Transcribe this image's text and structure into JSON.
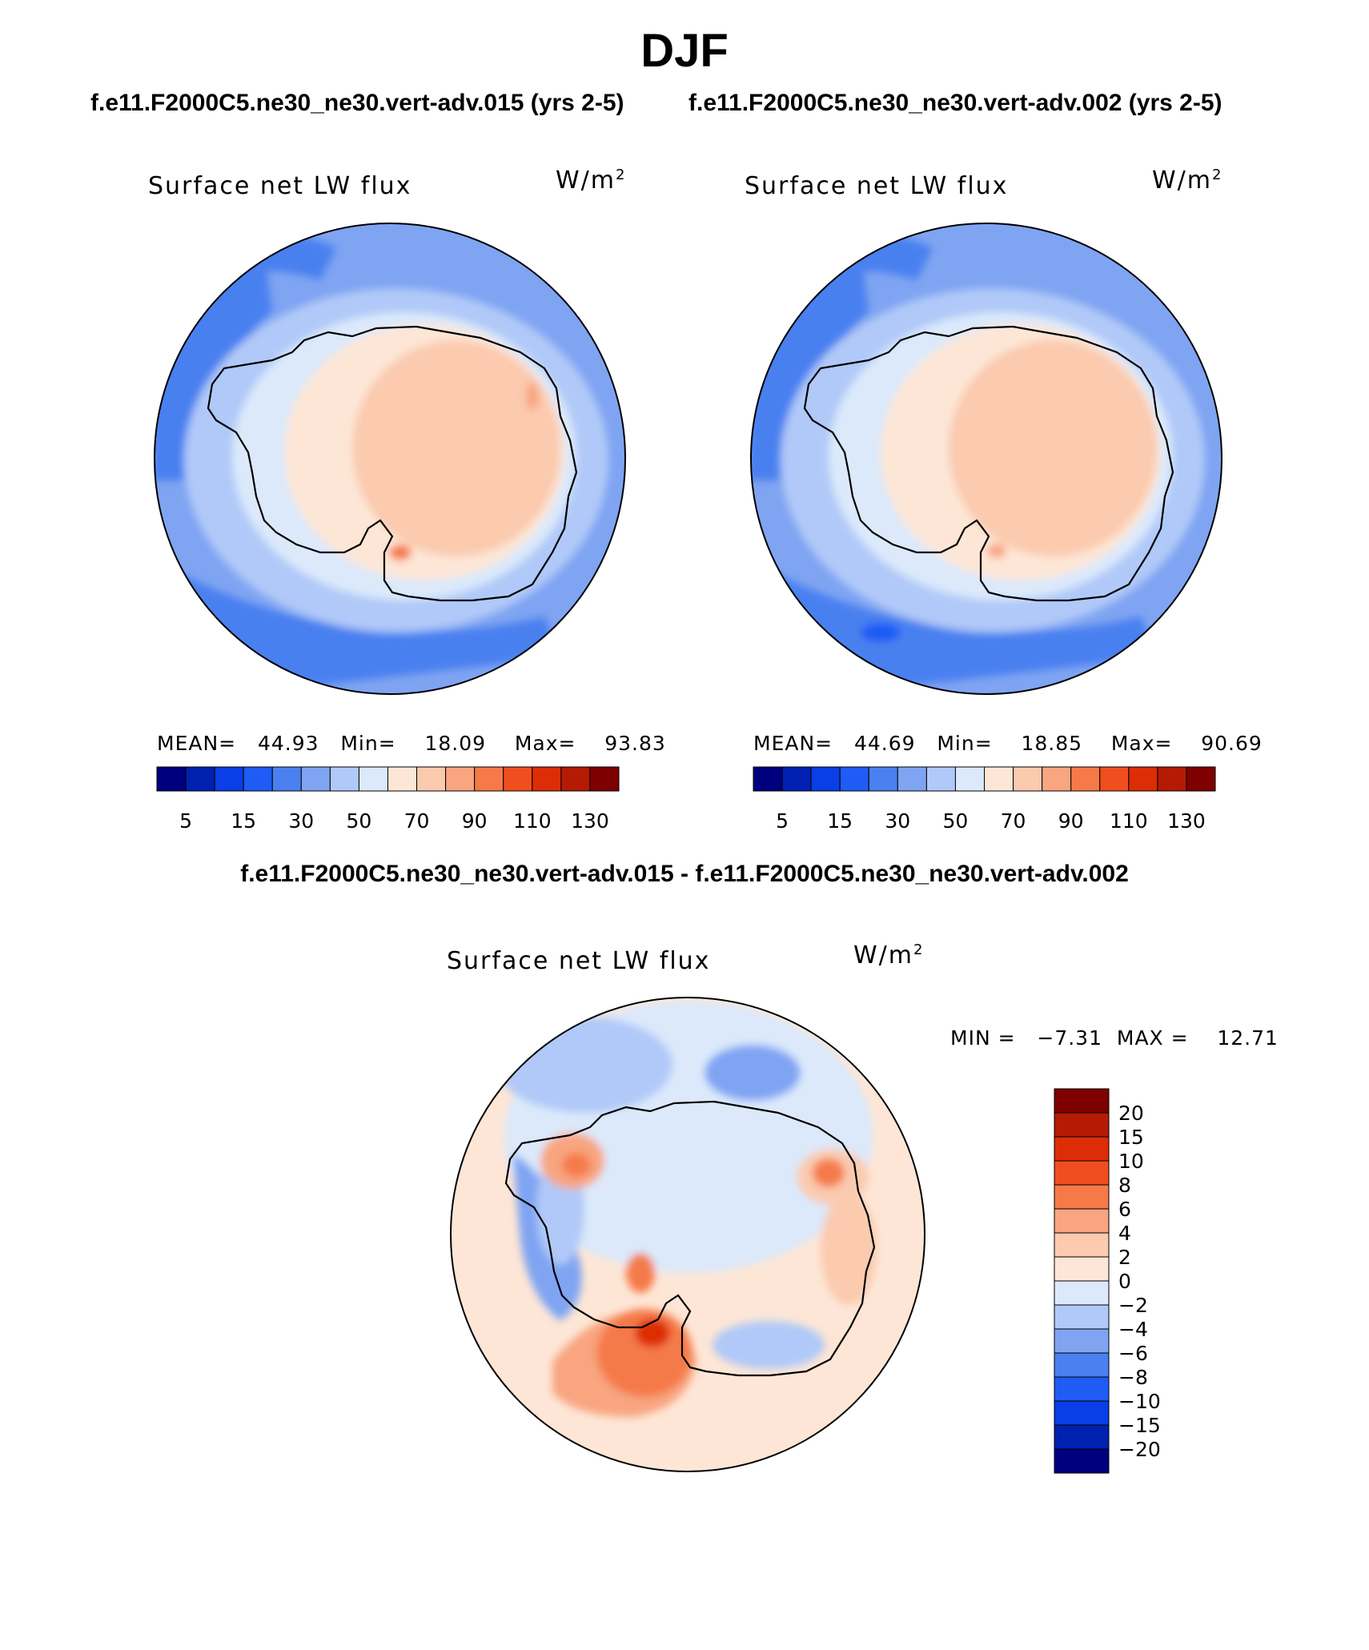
{
  "season": "DJF",
  "case_a_title": "f.e11.F2000C5.ne30_ne30.vert-adv.015 (yrs 2-5)",
  "case_b_title": "f.e11.F2000C5.ne30_ne30.vert-adv.002 (yrs 2-5)",
  "diff_title": "f.e11.F2000C5.ne30_ne30.vert-adv.015 - f.e11.F2000C5.ne30_ne30.vert-adv.002",
  "panels": [
    {
      "variable": "Surface net LW flux",
      "units": "W/m",
      "units_sup": "2",
      "stats": "MEAN=   44.93   Min=    18.09    Max=    93.83",
      "mean": 44.93,
      "min": 18.09,
      "max": 93.83
    },
    {
      "variable": "Surface net LW flux",
      "units": "W/m",
      "units_sup": "2",
      "stats": "MEAN=   44.69   Min=    18.85    Max=    90.69",
      "mean": 44.69,
      "min": 18.85,
      "max": 90.69
    },
    {
      "variable": "Surface net LW flux",
      "units": "W/m",
      "units_sup": "2",
      "stats": "MIN =   −7.31  MAX =    12.71",
      "min": -7.31,
      "max": 12.71
    }
  ],
  "colorbar_abs": {
    "labels": [
      "5",
      "15",
      "30",
      "50",
      "70",
      "90",
      "110",
      "130"
    ],
    "colors": [
      "#00007f",
      "#0020b0",
      "#0a3ee6",
      "#1f5cf5",
      "#4a80f0",
      "#7fa4f2",
      "#b0c9f8",
      "#dbe9fb",
      "#fde6d6",
      "#fbcaaf",
      "#f8a580",
      "#f57a48",
      "#f04e1e",
      "#dd2d06",
      "#b41a04",
      "#7f0000"
    ]
  },
  "colorbar_diff": {
    "labels": [
      "20",
      "15",
      "10",
      "8",
      "6",
      "4",
      "2",
      "0",
      "−2",
      "−4",
      "−6",
      "−8",
      "−10",
      "−15",
      "−20"
    ],
    "colors_top_to_bottom": [
      "#7f0000",
      "#b41a04",
      "#dd2d06",
      "#f04e1e",
      "#f57a48",
      "#f8a580",
      "#fbcaaf",
      "#fde6d6",
      "#dbe9fb",
      "#b0c9f8",
      "#7fa4f2",
      "#4a80f0",
      "#1f5cf5",
      "#0a3ee6",
      "#0020b0",
      "#00007f"
    ]
  },
  "map_colors": {
    "deep_blue": "#4a80f0",
    "ocean_blue": "#7fa4f2",
    "light_blue": "#b0c9f8",
    "pale_blue": "#dbe9fb",
    "pale_peach": "#fde6d6",
    "peach": "#fbcaaf",
    "salmon": "#f8a580",
    "orange": "#f57a48",
    "red": "#f04e1e",
    "dark_red": "#dd2d06"
  }
}
